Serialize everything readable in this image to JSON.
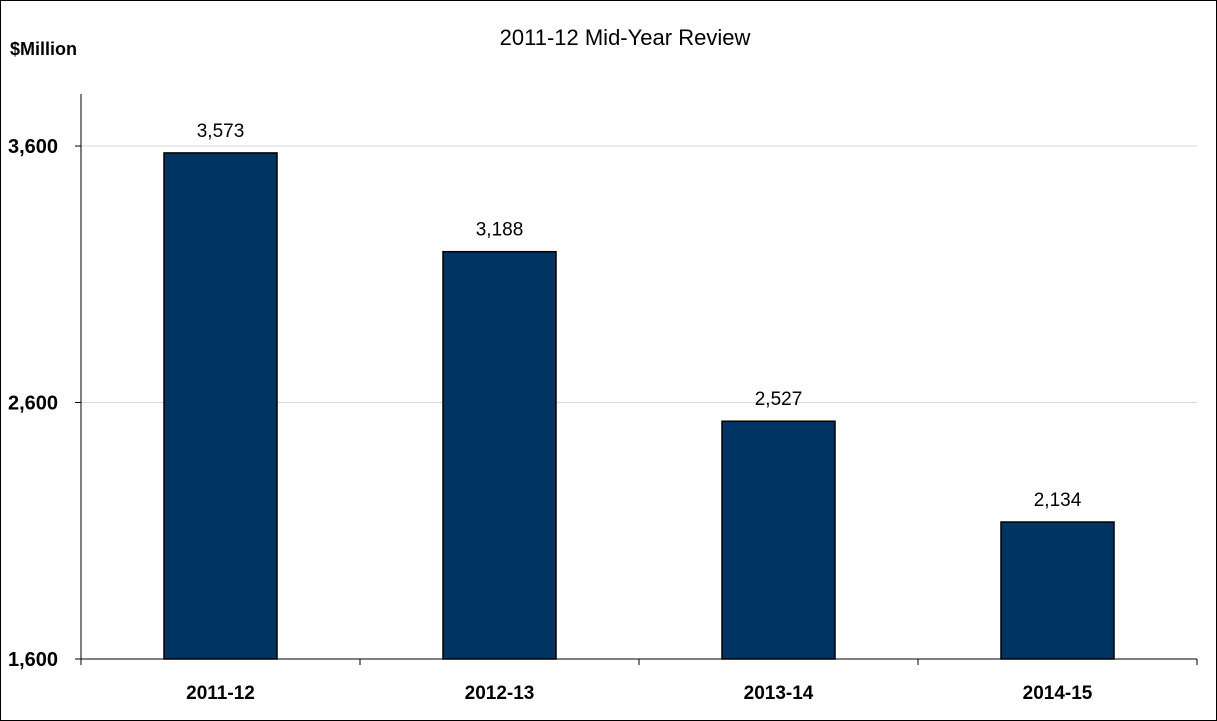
{
  "chart_data": {
    "type": "bar",
    "title": "2011-12 Mid-Year Review",
    "xlabel": "",
    "ylabel": "$Million",
    "categories": [
      "2011-12",
      "2012-13",
      "2013-14",
      "2014-15"
    ],
    "values": [
      3573,
      3188,
      2527,
      2134
    ],
    "data_labels": [
      "3,573",
      "3,188",
      "2,527",
      "2,134"
    ],
    "ylim": [
      1600,
      3800
    ],
    "yticks": [
      1600,
      2600,
      3600
    ],
    "ytick_labels": [
      "1,600",
      "2,600",
      "3,600"
    ],
    "grid": true,
    "legend": "none",
    "bar_color": "#003463",
    "bar_edge_color": "#000000",
    "grid_color": "#d9d9d9"
  }
}
